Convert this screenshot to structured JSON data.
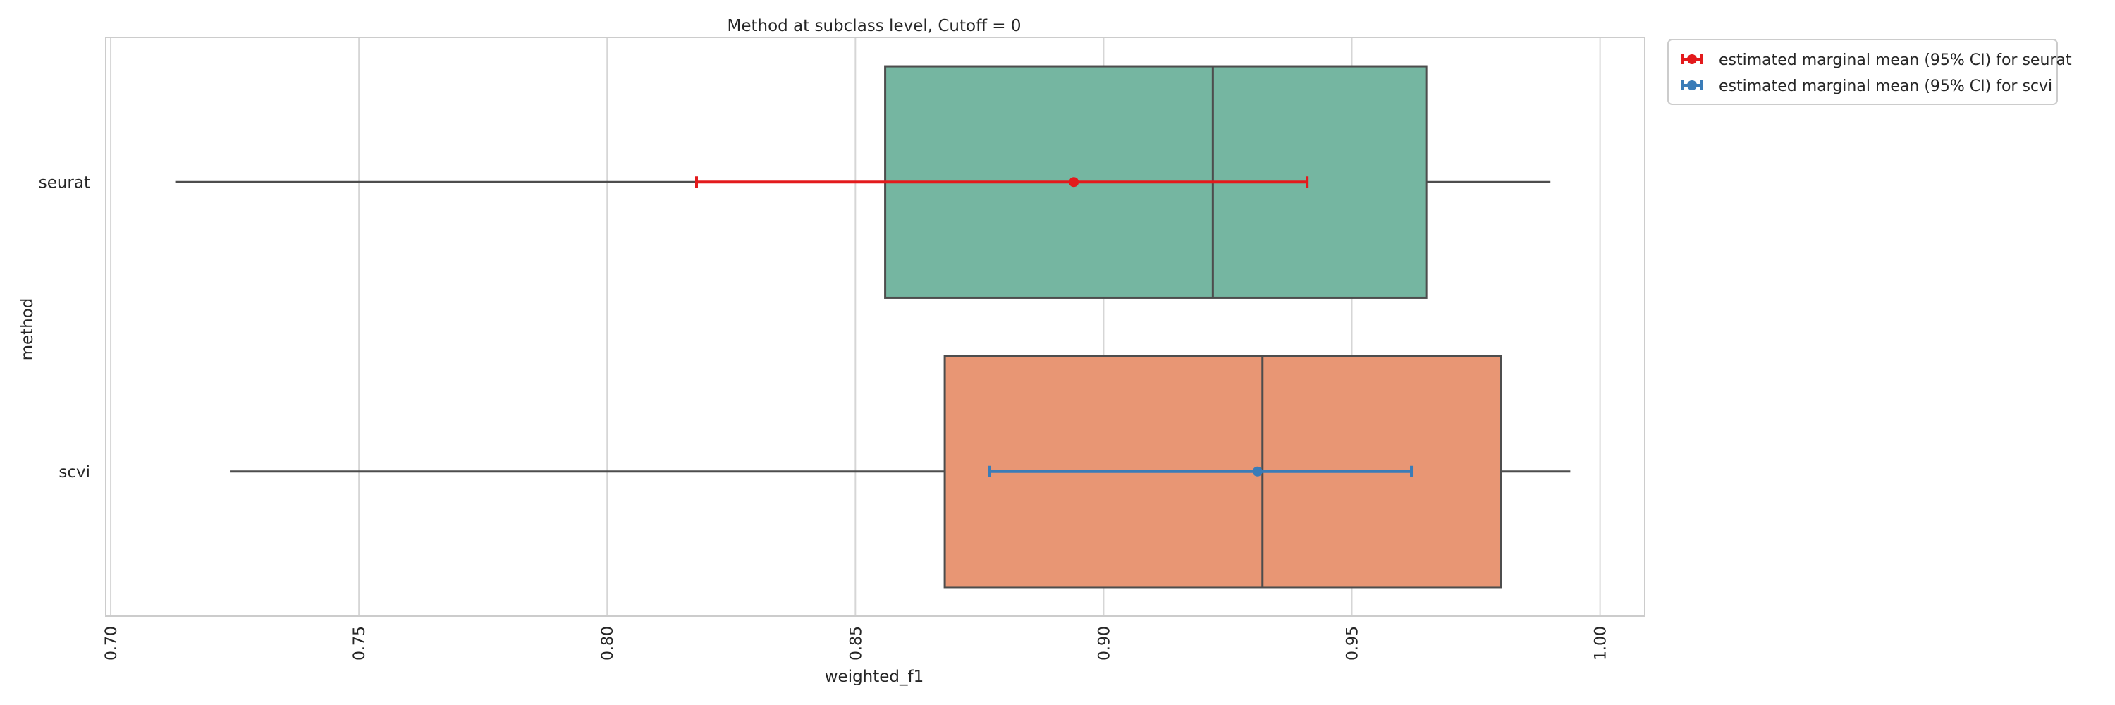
{
  "chart_data": {
    "type": "box",
    "orientation": "horizontal",
    "title": "Method at subclass level, Cutoff = 0",
    "xlabel": "weighted_f1",
    "ylabel": "method",
    "xlim": [
      0.699,
      1.009
    ],
    "xticks": [
      "0.70",
      "0.75",
      "0.80",
      "0.85",
      "0.90",
      "0.95",
      "1.00"
    ],
    "grid": true,
    "legend_position": "outside-top-right",
    "categories": [
      "seurat",
      "scvi"
    ],
    "boxes": [
      {
        "category": "seurat",
        "whisker_low": 0.713,
        "q1": 0.856,
        "median": 0.922,
        "q3": 0.965,
        "whisker_high": 0.99,
        "color": "#75b6a1"
      },
      {
        "category": "scvi",
        "whisker_low": 0.724,
        "q1": 0.868,
        "median": 0.932,
        "q3": 0.98,
        "whisker_high": 0.994,
        "color": "#e89674"
      }
    ],
    "series": [
      {
        "name": "estimated marginal mean (95% CI) for seurat",
        "category": "seurat",
        "mean": 0.894,
        "ci_low": 0.818,
        "ci_high": 0.941,
        "color": "#e31a1c"
      },
      {
        "name": "estimated marginal mean (95% CI) for scvi",
        "category": "scvi",
        "mean": 0.931,
        "ci_low": 0.877,
        "ci_high": 0.962,
        "color": "#3a7cb8"
      }
    ]
  }
}
